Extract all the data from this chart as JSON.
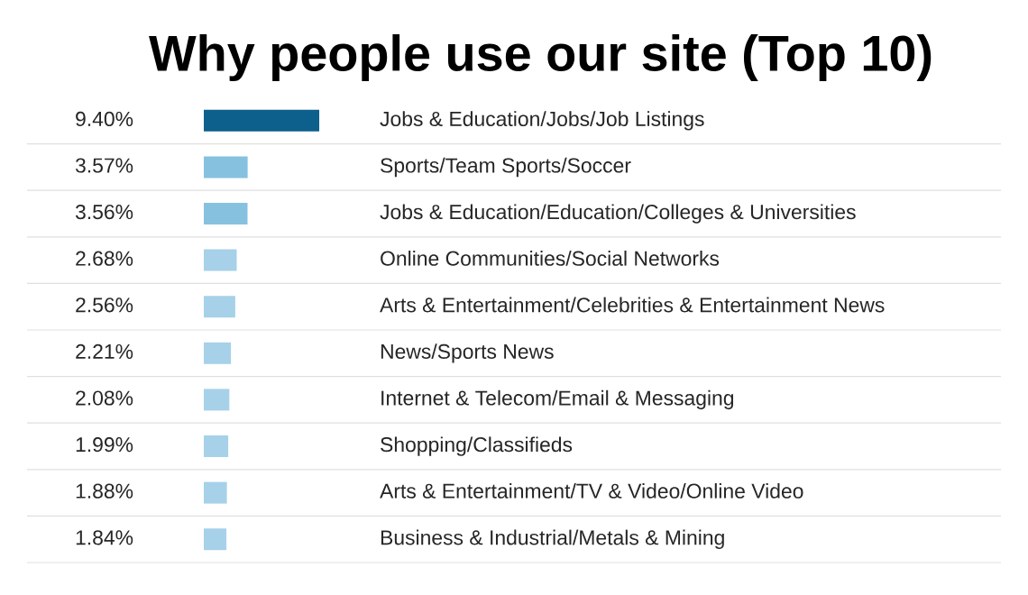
{
  "chart_data": {
    "type": "bar",
    "orientation": "horizontal",
    "title": "Why people use our site (Top 10)",
    "categories": [
      "Jobs & Education/Jobs/Job Listings",
      "Sports/Team Sports/Soccer",
      "Jobs & Education/Education/Colleges & Universities",
      "Online Communities/Social Networks",
      "Arts & Entertainment/Celebrities & Entertainment News",
      "News/Sports News",
      "Internet & Telecom/Email & Messaging",
      "Shopping/Classifieds",
      "Arts & Entertainment/TV & Video/Online Video",
      "Business & Industrial/Metals & Mining"
    ],
    "values": [
      9.4,
      3.57,
      3.56,
      2.68,
      2.56,
      2.21,
      2.08,
      1.99,
      1.88,
      1.84
    ],
    "value_labels": [
      "9.40%",
      "3.57%",
      "3.56%",
      "2.68%",
      "2.56%",
      "2.21%",
      "2.08%",
      "1.99%",
      "1.88%",
      "1.84%"
    ],
    "colors": [
      "#0d5f8c",
      "#86c1e0",
      "#86c1e0",
      "#a6d1e9",
      "#a6d1e9",
      "#a6d1e9",
      "#a6d1e9",
      "#a6d1e9",
      "#a6d1e9",
      "#a6d1e9"
    ],
    "grid": "y"
  }
}
